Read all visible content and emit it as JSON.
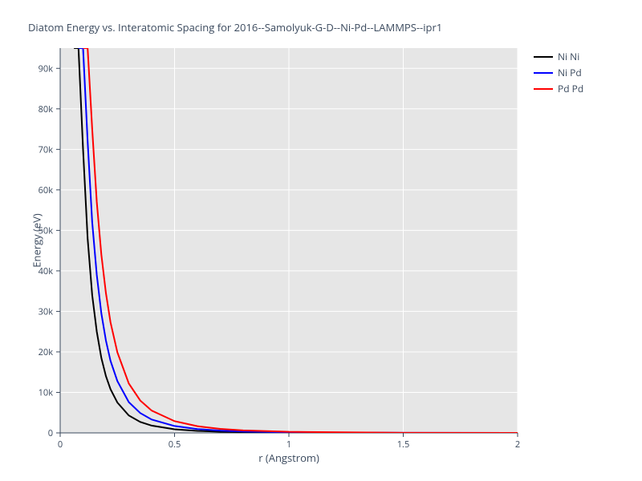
{
  "chart": {
    "type": "line",
    "title": "Diatom Energy vs. Interatomic Spacing for 2016--Samolyuk-G-D--Ni-Pd--LAMMPS--ipr1",
    "xlabel": "r (Angstrom)",
    "ylabel": "Energy (eV)",
    "background_color": "#ffffff",
    "plot_bg_color": "#e6e6e6",
    "grid_color": "#ffffff",
    "axis_line_color": "#3b4a5e",
    "text_color": "#3b4a5e",
    "title_fontsize": 13,
    "label_fontsize": 13,
    "tick_fontsize": 11,
    "xlim": [
      0,
      2
    ],
    "ylim": [
      0,
      95000
    ],
    "xticks": [
      0,
      0.5,
      1,
      1.5,
      2
    ],
    "xtick_labels": [
      "0",
      "0.5",
      "1",
      "1.5",
      "2"
    ],
    "yticks": [
      0,
      10000,
      20000,
      30000,
      40000,
      50000,
      60000,
      70000,
      80000,
      90000
    ],
    "ytick_labels": [
      "0",
      "10k",
      "20k",
      "30k",
      "40k",
      "50k",
      "60k",
      "70k",
      "80k",
      "90k"
    ],
    "line_width": 2,
    "series": [
      {
        "label": "Ni Ni",
        "color": "#000000",
        "x": [
          0.06,
          0.08,
          0.1,
          0.12,
          0.14,
          0.16,
          0.18,
          0.2,
          0.22,
          0.25,
          0.3,
          0.35,
          0.4,
          0.5,
          0.6,
          0.7,
          0.8,
          1.0,
          1.5,
          2.0
        ],
        "y": [
          95000,
          95000,
          70000,
          48000,
          34000,
          25000,
          18500,
          14000,
          10800,
          7500,
          4300,
          2700,
          1800,
          900,
          500,
          300,
          180,
          70,
          10,
          3
        ]
      },
      {
        "label": "Ni Pd",
        "color": "#0000ff",
        "x": [
          0.08,
          0.1,
          0.12,
          0.14,
          0.16,
          0.18,
          0.2,
          0.22,
          0.25,
          0.3,
          0.35,
          0.4,
          0.5,
          0.6,
          0.7,
          0.8,
          1.0,
          1.5,
          2.0
        ],
        "y": [
          95000,
          95000,
          72000,
          52000,
          39000,
          29500,
          22800,
          17800,
          12800,
          7600,
          4900,
          3300,
          1700,
          950,
          570,
          350,
          140,
          20,
          5
        ]
      },
      {
        "label": "Pd Pd",
        "color": "#ff0000",
        "x": [
          0.1,
          0.12,
          0.14,
          0.16,
          0.18,
          0.2,
          0.22,
          0.25,
          0.3,
          0.35,
          0.4,
          0.5,
          0.6,
          0.7,
          0.8,
          1.0,
          1.5,
          2.0
        ],
        "y": [
          95000,
          95000,
          75000,
          57000,
          44000,
          34500,
          27300,
          19900,
          12200,
          8000,
          5500,
          2900,
          1650,
          1000,
          620,
          260,
          35,
          8
        ]
      }
    ],
    "legend": {
      "position": "right",
      "items": [
        {
          "label": "Ni Ni",
          "color": "#000000"
        },
        {
          "label": "Ni Pd",
          "color": "#0000ff"
        },
        {
          "label": "Pd Pd",
          "color": "#ff0000"
        }
      ]
    }
  }
}
